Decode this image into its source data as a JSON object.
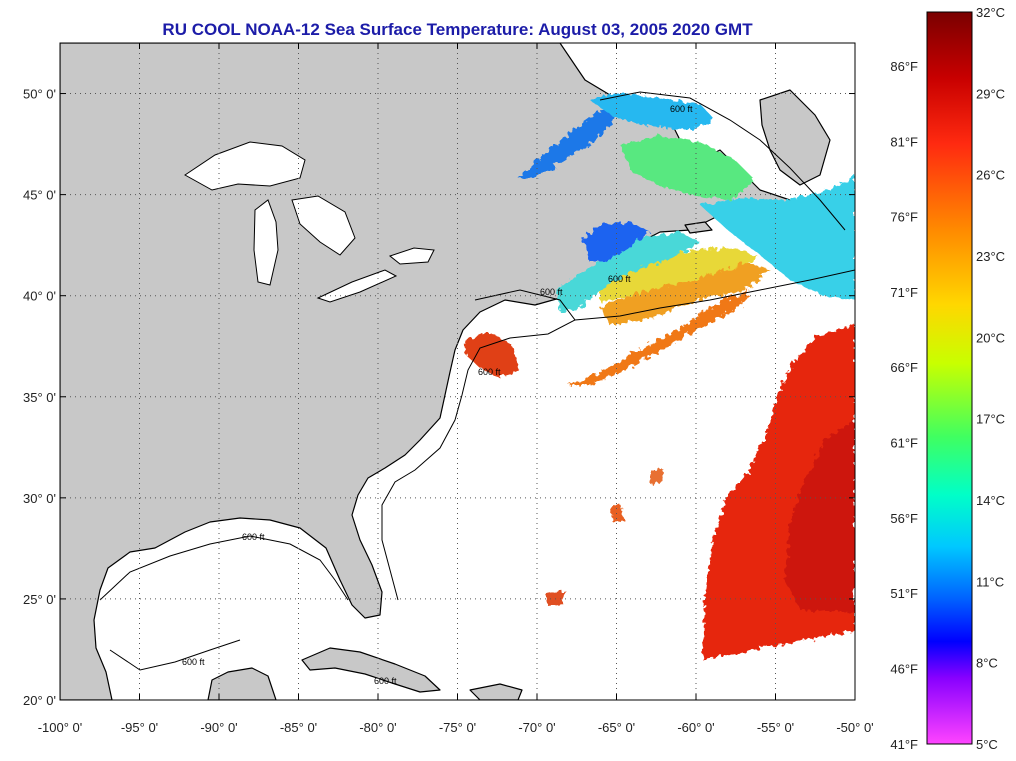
{
  "title": "RU COOL  NOAA-12  Sea Surface Temperature:  August 03, 2005 2020 GMT",
  "map": {
    "lon_range": [
      -100,
      -50
    ],
    "lat_range": [
      20,
      52.5
    ],
    "lon_ticks": [
      "-100° 0'",
      "-95° 0'",
      "-90° 0'",
      "-85° 0'",
      "-80° 0'",
      "-75° 0'",
      "-70° 0'",
      "-65° 0'",
      "-60° 0'",
      "-55° 0'",
      "-50° 0'"
    ],
    "lat_ticks": [
      "20° 0'",
      "25° 0'",
      "30° 0'",
      "35° 0'",
      "40° 0'",
      "45° 0'",
      "50° 0'"
    ],
    "contour_label": "600 ft",
    "colors": {
      "land": "#c8c8c8",
      "ocean_nodata": "#ffffff",
      "coast": "#000000"
    }
  },
  "colorbar": {
    "celsius": [
      "32°C",
      "29°C",
      "26°C",
      "23°C",
      "20°C",
      "17°C",
      "14°C",
      "11°C",
      "8°C",
      "5°C"
    ],
    "fahrenheit": [
      "86°F",
      "81°F",
      "76°F",
      "71°F",
      "66°F",
      "61°F",
      "56°F",
      "51°F",
      "46°F",
      "41°F"
    ],
    "range_c": [
      5,
      32
    ],
    "gradient": [
      "#7a0000",
      "#c80000",
      "#ff2a10",
      "#ff8c00",
      "#ffd700",
      "#c8ff00",
      "#40ff60",
      "#00ffc8",
      "#00c8ff",
      "#0064ff",
      "#0000ff",
      "#8800ff",
      "#ff44ff"
    ]
  }
}
